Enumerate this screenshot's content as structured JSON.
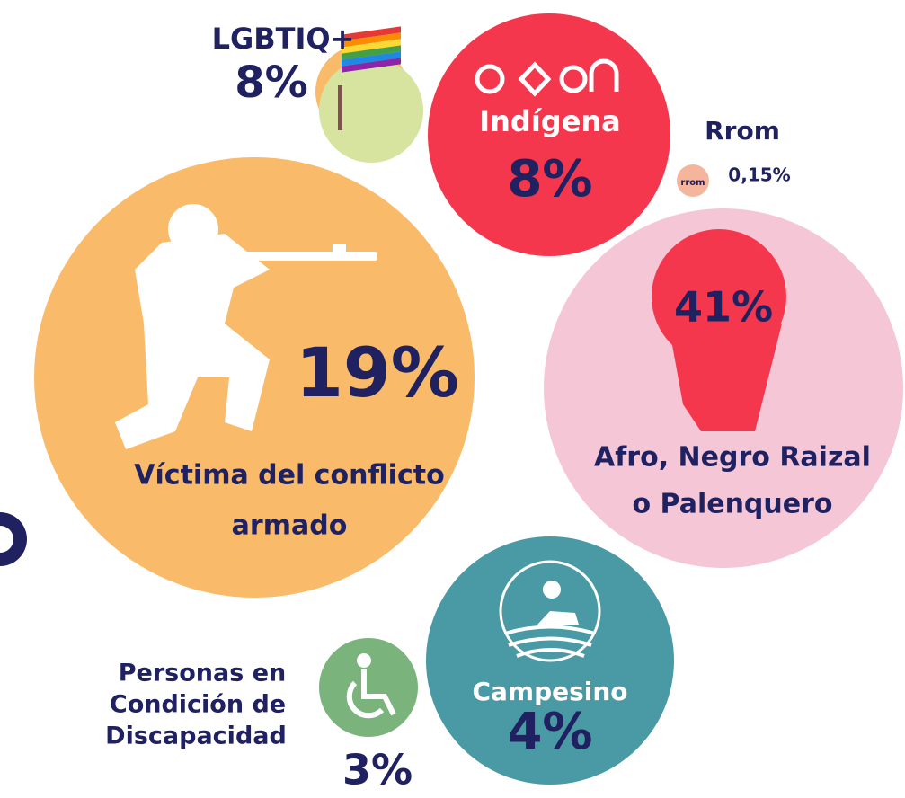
{
  "groups": [
    {
      "label": [
        "LGBTIQ+"
      ],
      "value": "8%"
    },
    {
      "label": [
        "Indígena"
      ],
      "value": "8%"
    },
    {
      "label": [
        "Rrom"
      ],
      "icon_text": "rrom",
      "value": "0,15%"
    },
    {
      "label": [
        "Víctima del conflicto",
        "armado"
      ],
      "value": "19%"
    },
    {
      "label": [
        "Afro, Negro Raizal",
        "o Palenquero"
      ],
      "value": "41%"
    },
    {
      "label": [
        "Personas en",
        "Condición de",
        "Discapacidad"
      ],
      "value": "3%"
    },
    {
      "label": [
        "Campesino"
      ],
      "value": "4%"
    }
  ]
}
